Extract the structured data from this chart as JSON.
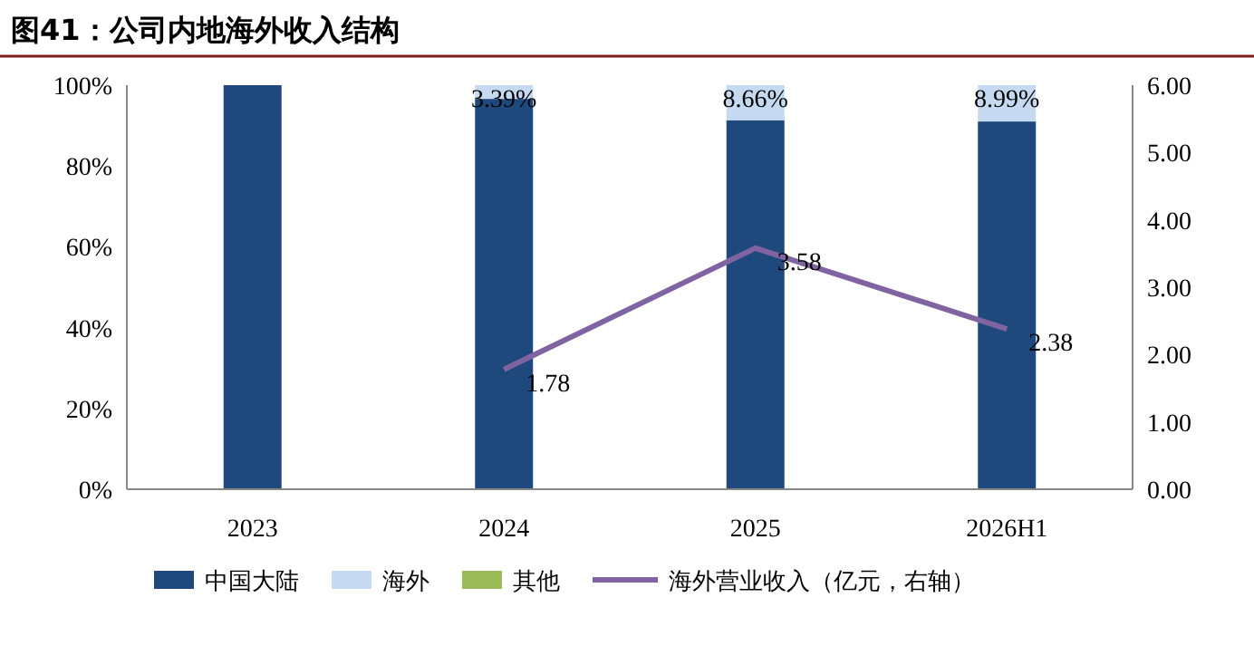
{
  "chart_data": {
    "type": "bar",
    "title": "图41：公司内地海外收入结构",
    "categories": [
      "2023",
      "2024",
      "2025",
      "2026H1"
    ],
    "stacked": true,
    "grid": false,
    "legend": "bottom",
    "ylim": [
      0,
      100
    ],
    "yticks": [
      {
        "value": 0,
        "label": "0%"
      },
      {
        "value": 20,
        "label": "20%"
      },
      {
        "value": 40,
        "label": "40%"
      },
      {
        "value": 60,
        "label": "60%"
      },
      {
        "value": 80,
        "label": "80%"
      },
      {
        "value": 100,
        "label": "100%"
      }
    ],
    "y2lim": [
      0,
      6
    ],
    "y2ticks": [
      {
        "value": 0,
        "label": "0.00"
      },
      {
        "value": 1,
        "label": "1.00"
      },
      {
        "value": 2,
        "label": "2.00"
      },
      {
        "value": 3,
        "label": "3.00"
      },
      {
        "value": 4,
        "label": "4.00"
      },
      {
        "value": 5,
        "label": "5.00"
      },
      {
        "value": 6,
        "label": "6.00"
      }
    ],
    "series": [
      {
        "name": "中国大陆",
        "color": "#1f497d",
        "values": [
          100,
          96.61,
          91.34,
          91.01
        ]
      },
      {
        "name": "海外",
        "color": "#c5d9f1",
        "values": [
          0,
          3.39,
          8.66,
          8.99
        ],
        "value_labels": [
          null,
          "3.39%",
          "8.66%",
          "8.99%"
        ]
      },
      {
        "name": "其他",
        "color": "#9bbb59",
        "values": [
          0,
          0,
          0,
          0
        ]
      },
      {
        "name": "海外营业收入（亿元，右轴）",
        "type": "line",
        "axis": "y2",
        "color": "#8064a2",
        "values": [
          null,
          1.78,
          3.58,
          2.38
        ],
        "value_labels": [
          null,
          "1.78",
          "3.58",
          "2.38"
        ]
      }
    ]
  }
}
